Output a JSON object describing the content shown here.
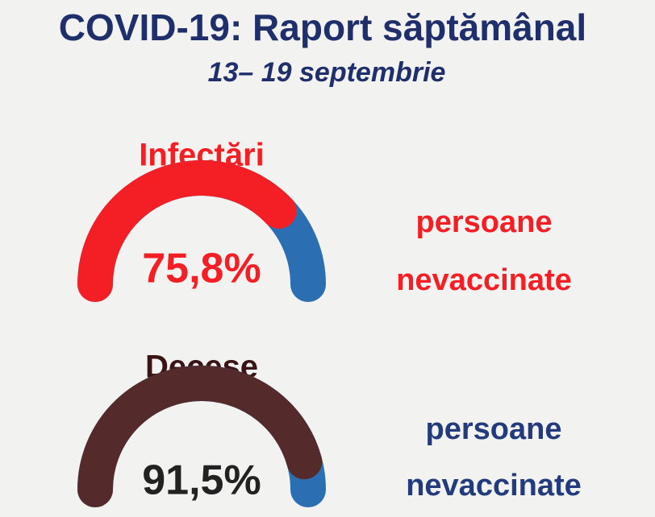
{
  "title": "COVID-19: Raport săptămânal",
  "subtitle": "13– 19 septembrie",
  "chart_data": [
    {
      "type": "gauge",
      "title": "Infectări",
      "values": [
        75.8
      ],
      "value_labels": [
        "75,8%"
      ],
      "ylim": [
        0,
        100
      ],
      "color": "#f41f24",
      "track_color": "#2b6fb2",
      "title_color": "#f41f24",
      "label_color": "#f41f24",
      "annotations": [
        "persoane",
        "nevaccinate"
      ],
      "annotation_color": "#f41f24"
    },
    {
      "type": "gauge",
      "title": "Decese",
      "values": [
        91.5
      ],
      "value_labels": [
        "91,5%"
      ],
      "ylim": [
        0,
        100
      ],
      "color": "#552a2a",
      "track_color": "#2b6fb2",
      "title_color": "#3a1414",
      "label_color": "#222222",
      "annotations": [
        "persoane",
        "nevaccinate"
      ],
      "annotation_color": "#233b7c"
    }
  ]
}
